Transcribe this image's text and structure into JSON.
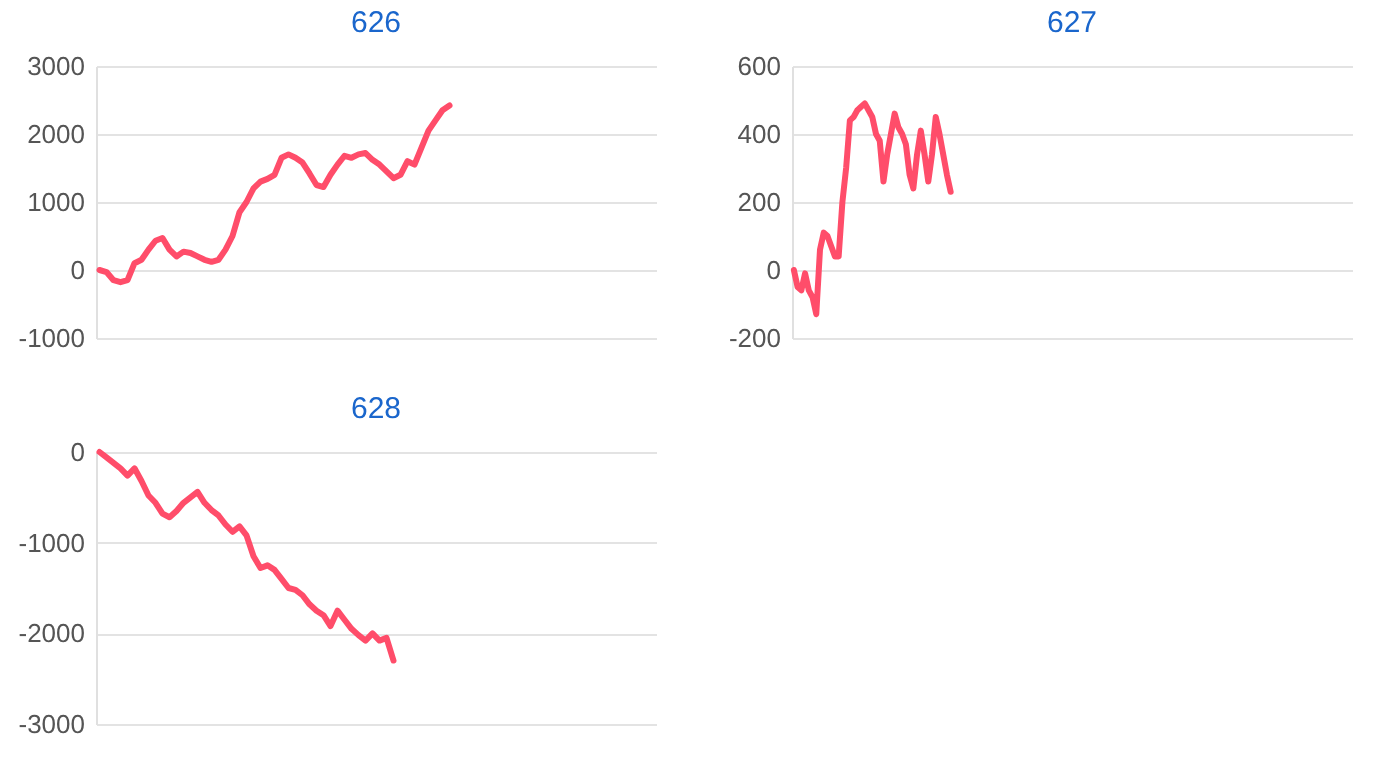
{
  "chart_data": [
    {
      "type": "line",
      "title": "626",
      "categories": [
        null,
        null,
        null,
        null,
        null,
        null,
        null,
        null,
        null,
        null,
        null,
        null,
        null,
        null,
        null,
        null,
        null,
        null,
        null,
        null,
        null,
        null,
        null,
        null,
        null,
        null,
        null,
        null,
        null,
        null,
        null,
        null,
        null,
        null,
        null,
        null,
        null,
        null,
        null,
        null,
        null,
        null,
        null,
        null,
        null,
        null,
        null,
        null,
        null,
        null,
        null,
        null,
        null,
        null,
        null,
        null,
        null,
        null,
        null,
        null,
        null,
        null,
        null,
        null,
        null,
        null,
        null,
        null,
        null,
        null,
        null,
        null,
        null,
        null,
        null,
        null,
        null,
        null,
        null,
        null
      ],
      "series": [
        {
          "color": "#ff4d6a",
          "values": [
            0,
            -30,
            -150,
            -180,
            -150,
            100,
            150,
            300,
            430,
            470,
            300,
            200,
            270,
            250,
            200,
            150,
            120,
            150,
            300,
            500,
            850,
            1000,
            1200,
            1300,
            1340,
            1400,
            1650,
            1700,
            1650,
            1580,
            1420,
            1250,
            1220,
            1400,
            1550,
            1680,
            1650,
            1700,
            1720,
            1620,
            1550,
            1450,
            1350,
            1400,
            1600,
            1550,
            1800,
            2050,
            2200,
            2350,
            2420,
            null,
            null,
            null,
            null,
            null,
            null,
            null,
            null,
            null,
            null,
            null,
            null,
            null,
            null,
            null,
            null,
            null,
            null,
            null,
            null,
            null,
            null,
            null,
            null,
            null,
            null,
            null,
            null,
            null
          ]
        }
      ],
      "ylim": [
        -1000,
        3000
      ],
      "yticks": [
        -1000,
        0,
        1000,
        2000,
        3000
      ],
      "grid": "y",
      "tick_labels": "y",
      "marker": "none"
    },
    {
      "type": "line",
      "title": "627",
      "categories": [
        null,
        null,
        null,
        null,
        null,
        null,
        null,
        null,
        null,
        null,
        null,
        null,
        null,
        null,
        null,
        null,
        null,
        null,
        null,
        null,
        null,
        null,
        null,
        null,
        null,
        null,
        null,
        null,
        null,
        null,
        null,
        null,
        null,
        null,
        null,
        null,
        null,
        null,
        null,
        null,
        null,
        null,
        null,
        null,
        null,
        null,
        null,
        null,
        null,
        null,
        null,
        null,
        null,
        null,
        null,
        null,
        null,
        null,
        null,
        null,
        null,
        null,
        null,
        null,
        null,
        null,
        null,
        null,
        null,
        null,
        null,
        null,
        null,
        null,
        null,
        null,
        null,
        null,
        null,
        null,
        null,
        null,
        null,
        null,
        null,
        null,
        null,
        null,
        null,
        null,
        null,
        null,
        null,
        null,
        null,
        null,
        null,
        null,
        null,
        null,
        null,
        null,
        null,
        null,
        null,
        null,
        null,
        null,
        null,
        null,
        null,
        null,
        null,
        null,
        null,
        null,
        null,
        null,
        null,
        null,
        null,
        null,
        null,
        null,
        null,
        null,
        null,
        null,
        null,
        null,
        null,
        null,
        null,
        null,
        null,
        null,
        null,
        null,
        null,
        null,
        null,
        null,
        null,
        null,
        null,
        null,
        null,
        null,
        null,
        null
      ],
      "series": [
        {
          "color": "#ff4d6a",
          "values": [
            0,
            -50,
            -60,
            -10,
            -60,
            -80,
            -130,
            60,
            110,
            100,
            70,
            40,
            40,
            200,
            300,
            440,
            450,
            470,
            480,
            490,
            470,
            450,
            400,
            380,
            260,
            340,
            400,
            460,
            420,
            400,
            370,
            280,
            240,
            340,
            410,
            340,
            260,
            340,
            450,
            400,
            340,
            280,
            230,
            null,
            null,
            null,
            null,
            null,
            null,
            null,
            null,
            null,
            null,
            null,
            null,
            null,
            null,
            null,
            null,
            null,
            null,
            null,
            null,
            null,
            null,
            null,
            null,
            null,
            null,
            null,
            null,
            null,
            null,
            null,
            null,
            null,
            null,
            null,
            null,
            null,
            null,
            null,
            null,
            null,
            null,
            null,
            null,
            null,
            null,
            null,
            null,
            null,
            null,
            null,
            null,
            null,
            null,
            null,
            null,
            null,
            null,
            null,
            null,
            null,
            null,
            null,
            null,
            null,
            null,
            null,
            null,
            null,
            null,
            null,
            null,
            null,
            null,
            null,
            null,
            null,
            null,
            null,
            null,
            null,
            null,
            null,
            null,
            null,
            null,
            null,
            null,
            null,
            null,
            null,
            null,
            null,
            null,
            null,
            null,
            null,
            null,
            null,
            null,
            null,
            null,
            null,
            null,
            null,
            null,
            null
          ]
        }
      ],
      "ylim": [
        -200,
        600
      ],
      "yticks": [
        -200,
        0,
        200,
        400,
        600
      ],
      "grid": "y",
      "tick_labels": "y",
      "marker": "none"
    },
    {
      "type": "line",
      "title": "628",
      "categories": [
        null,
        null,
        null,
        null,
        null,
        null,
        null,
        null,
        null,
        null,
        null,
        null,
        null,
        null,
        null,
        null,
        null,
        null,
        null,
        null,
        null,
        null,
        null,
        null,
        null,
        null,
        null,
        null,
        null,
        null,
        null,
        null,
        null,
        null,
        null,
        null,
        null,
        null,
        null,
        null,
        null,
        null,
        null,
        null,
        null,
        null,
        null,
        null,
        null,
        null,
        null,
        null,
        null,
        null,
        null,
        null,
        null,
        null,
        null,
        null,
        null,
        null,
        null,
        null,
        null,
        null,
        null,
        null,
        null,
        null,
        null,
        null,
        null,
        null,
        null,
        null,
        null,
        null,
        null,
        null
      ],
      "series": [
        {
          "color": "#ff4d6a",
          "values": [
            0,
            -60,
            -120,
            -180,
            -260,
            -180,
            -320,
            -480,
            -560,
            -680,
            -720,
            -650,
            -560,
            -500,
            -440,
            -560,
            -640,
            -700,
            -800,
            -880,
            -820,
            -920,
            -1150,
            -1280,
            -1250,
            -1300,
            -1400,
            -1500,
            -1520,
            -1580,
            -1680,
            -1750,
            -1800,
            -1920,
            -1750,
            -1850,
            -1950,
            -2020,
            -2080,
            -2000,
            -2080,
            -2050,
            -2300,
            null,
            null,
            null,
            null,
            null,
            null,
            null,
            null,
            null,
            null,
            null,
            null,
            null,
            null,
            null,
            null,
            null,
            null,
            null,
            null,
            null,
            null,
            null,
            null,
            null,
            null,
            null,
            null,
            null,
            null,
            null,
            null,
            null,
            null,
            null,
            null,
            null
          ]
        }
      ],
      "ylim": [
        -3000,
        0
      ],
      "yticks": [
        -3000,
        -2000,
        -1000,
        0
      ],
      "grid": "y",
      "tick_labels": "y",
      "marker": "none"
    }
  ]
}
